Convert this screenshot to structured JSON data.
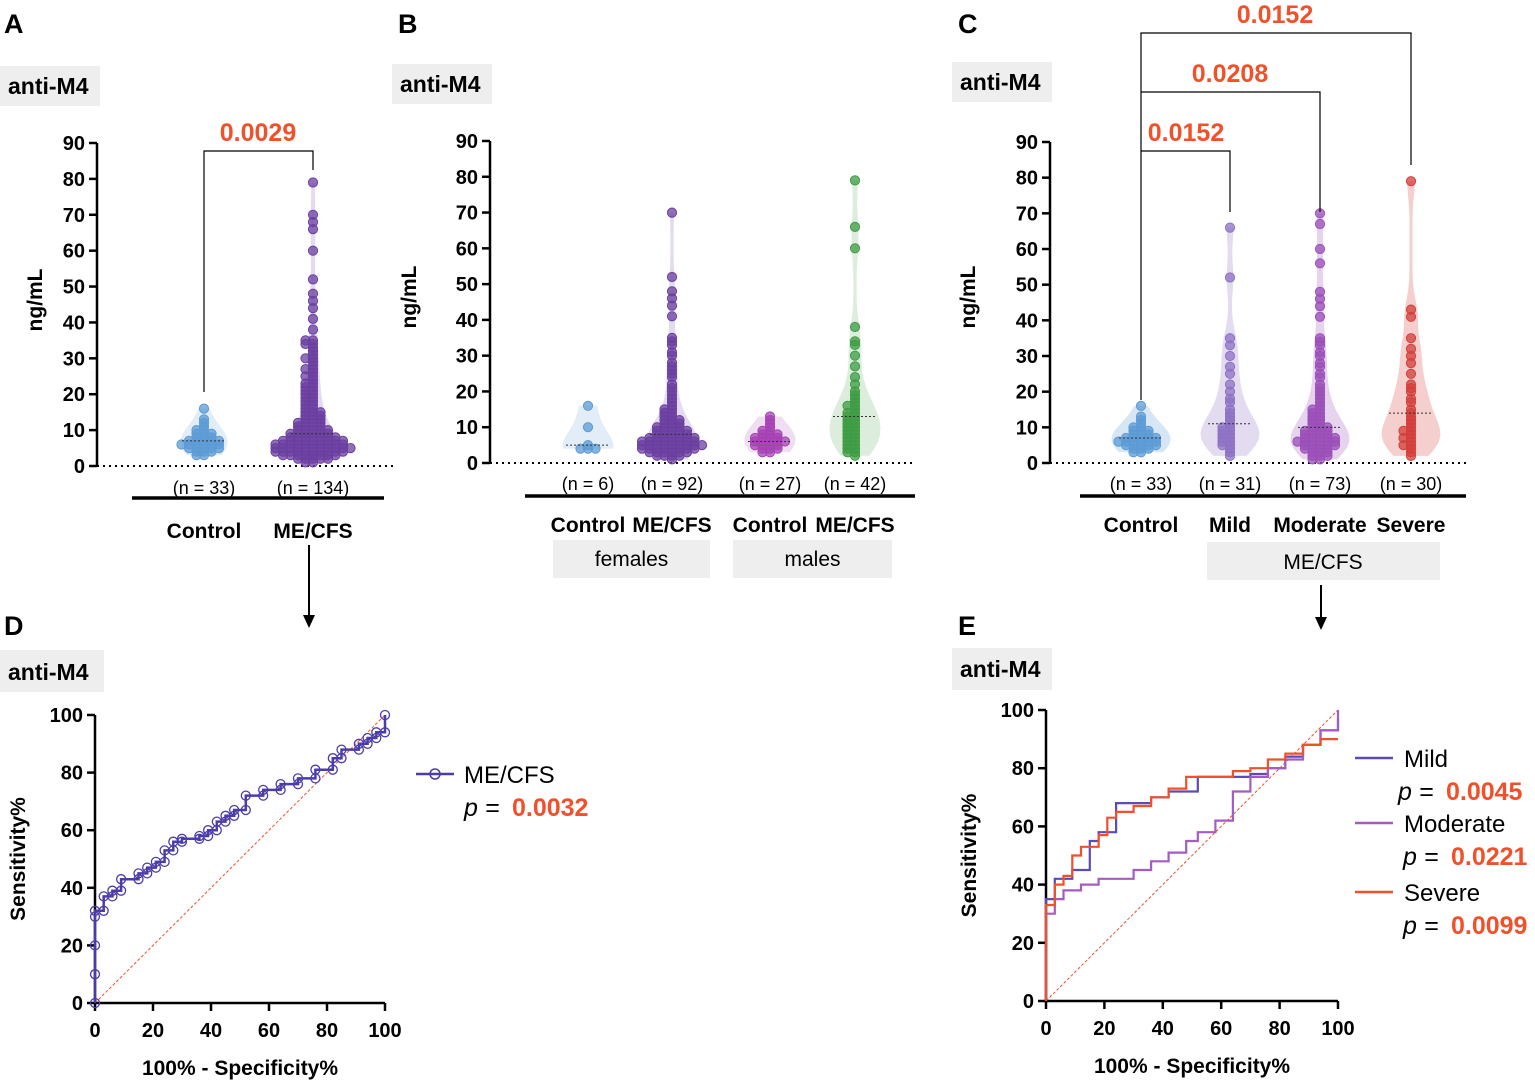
{
  "figure_labels": [
    "A",
    "B",
    "C",
    "D",
    "E"
  ],
  "colors": {
    "control_blue": "#5C9BD5",
    "mecfs_purple": "#6B3FA0",
    "male_control": "#A742B4",
    "male_mecfs": "#3E9C44",
    "mild": "#8E72C4",
    "moderate": "#9B4FB8",
    "severe": "#D33F3A",
    "significance": "#F0512A",
    "roc_main": "#4B3DA8"
  },
  "chart_data": [
    {
      "id": "A",
      "type": "scatter",
      "subtype": "violin-dot",
      "tag": "anti-M4",
      "ylabel": "ng/mL",
      "ylim": [
        0,
        90
      ],
      "yticks": [
        0,
        10,
        20,
        30,
        40,
        50,
        60,
        70,
        80,
        90
      ],
      "groups": [
        {
          "label": "Control",
          "n_label": "(n = 33)",
          "n": 33,
          "color": "#5C9BD5",
          "values": [
            16,
            13,
            12,
            11,
            10,
            10,
            9,
            9,
            9,
            8,
            8,
            8,
            7,
            7,
            7,
            7,
            7,
            6,
            6,
            6,
            6,
            6,
            6,
            5,
            5,
            5,
            5,
            5,
            4,
            4,
            4,
            3,
            3
          ]
        },
        {
          "label": "ME/CFS",
          "n_label": "(n = 134)",
          "n": 134,
          "color": "#6B3FA0",
          "values": [
            79,
            70,
            68,
            66,
            60,
            52,
            48,
            46,
            44,
            41,
            38,
            35,
            35,
            34,
            34,
            33,
            32,
            31,
            30,
            30,
            29,
            28,
            27,
            27,
            26,
            25,
            25,
            24,
            23,
            23,
            22,
            22,
            21,
            21,
            20,
            20,
            19,
            19,
            18,
            18,
            17,
            17,
            16,
            16,
            15,
            15,
            15,
            14,
            14,
            14,
            13,
            13,
            13,
            12,
            12,
            12,
            12,
            11,
            11,
            11,
            11,
            10,
            10,
            10,
            10,
            10,
            9,
            9,
            9,
            9,
            9,
            9,
            8,
            8,
            8,
            8,
            8,
            8,
            8,
            7,
            7,
            7,
            7,
            7,
            7,
            7,
            7,
            7,
            6,
            6,
            6,
            6,
            6,
            6,
            6,
            6,
            6,
            6,
            5,
            5,
            5,
            5,
            5,
            5,
            5,
            5,
            5,
            5,
            5,
            4,
            4,
            4,
            4,
            4,
            4,
            4,
            4,
            4,
            4,
            3,
            3,
            3,
            3,
            3,
            3,
            3,
            3,
            2,
            2,
            2,
            2,
            2,
            1,
            1
          ]
        }
      ],
      "comparisons": [
        {
          "from": "Control",
          "to": "ME/CFS",
          "p_label": "0.0029"
        }
      ]
    },
    {
      "id": "B",
      "type": "scatter",
      "subtype": "violin-dot",
      "tag": "anti-M4",
      "ylabel": "ng/mL",
      "ylim": [
        0,
        90
      ],
      "yticks": [
        0,
        10,
        20,
        30,
        40,
        50,
        60,
        70,
        80,
        90
      ],
      "groups": [
        {
          "label": "Control",
          "n_label": "(n = 6)",
          "n": 6,
          "color": "#5C9BD5",
          "values": [
            16,
            10,
            5,
            4,
            4,
            4
          ]
        },
        {
          "label": "ME/CFS",
          "n_label": "(n = 92)",
          "n": 92,
          "color": "#6B3FA0",
          "values": [
            70,
            52,
            48,
            46,
            44,
            41,
            35,
            34,
            33,
            31,
            30,
            28,
            27,
            26,
            25,
            24,
            22,
            21,
            20,
            19,
            18,
            17,
            16,
            15,
            15,
            14,
            14,
            13,
            13,
            12,
            12,
            12,
            11,
            11,
            11,
            10,
            10,
            10,
            10,
            9,
            9,
            9,
            9,
            9,
            8,
            8,
            8,
            8,
            8,
            7,
            7,
            7,
            7,
            7,
            7,
            7,
            6,
            6,
            6,
            6,
            6,
            6,
            6,
            6,
            5,
            5,
            5,
            5,
            5,
            5,
            5,
            5,
            5,
            4,
            4,
            4,
            4,
            4,
            4,
            4,
            4,
            3,
            3,
            3,
            3,
            3,
            3,
            2,
            2,
            2,
            2,
            1
          ]
        },
        {
          "label": "Control",
          "n_label": "(n = 27)",
          "n": 27,
          "color": "#A742B4",
          "values": [
            13,
            12,
            11,
            10,
            9,
            9,
            8,
            8,
            8,
            7,
            7,
            7,
            7,
            6,
            6,
            6,
            6,
            6,
            5,
            5,
            5,
            5,
            4,
            4,
            4,
            3,
            3
          ]
        },
        {
          "label": "ME/CFS",
          "n_label": "(n = 42)",
          "n": 42,
          "color": "#3E9C44",
          "values": [
            79,
            66,
            60,
            38,
            34,
            33,
            30,
            27,
            24,
            22,
            20,
            19,
            18,
            17,
            16,
            16,
            15,
            14,
            14,
            13,
            13,
            12,
            12,
            11,
            11,
            10,
            10,
            9,
            9,
            8,
            8,
            7,
            7,
            6,
            6,
            5,
            5,
            4,
            4,
            3,
            3,
            2
          ]
        }
      ],
      "sex_labels": [
        {
          "text": "females",
          "spans": [
            0,
            1
          ]
        },
        {
          "text": "males",
          "spans": [
            2,
            3
          ]
        }
      ]
    },
    {
      "id": "C",
      "type": "scatter",
      "subtype": "violin-dot",
      "tag": "anti-M4",
      "ylabel": "ng/mL",
      "ylim": [
        0,
        90
      ],
      "yticks": [
        0,
        10,
        20,
        30,
        40,
        50,
        60,
        70,
        80,
        90
      ],
      "groups": [
        {
          "label": "Control",
          "n_label": "(n = 33)",
          "n": 33,
          "color": "#5C9BD5",
          "values": [
            16,
            13,
            12,
            11,
            10,
            10,
            9,
            9,
            9,
            8,
            8,
            8,
            7,
            7,
            7,
            7,
            7,
            6,
            6,
            6,
            6,
            6,
            6,
            5,
            5,
            5,
            5,
            5,
            4,
            4,
            4,
            3,
            3
          ]
        },
        {
          "label": "Mild",
          "n_label": "(n = 31)",
          "n": 31,
          "color": "#8E72C4",
          "values": [
            66,
            52,
            35,
            33,
            30,
            27,
            25,
            22,
            20,
            18,
            17,
            15,
            14,
            13,
            12,
            11,
            10,
            10,
            9,
            9,
            8,
            8,
            7,
            7,
            6,
            6,
            5,
            5,
            4,
            3,
            2
          ]
        },
        {
          "label": "Moderate",
          "n_label": "(n = 73)",
          "n": 73,
          "color": "#9B4FB8",
          "values": [
            70,
            67,
            60,
            56,
            48,
            46,
            44,
            41,
            35,
            34,
            33,
            31,
            30,
            28,
            27,
            25,
            24,
            22,
            21,
            20,
            19,
            18,
            17,
            16,
            15,
            15,
            14,
            14,
            13,
            13,
            12,
            12,
            11,
            11,
            10,
            10,
            10,
            9,
            9,
            9,
            9,
            8,
            8,
            8,
            8,
            7,
            7,
            7,
            7,
            7,
            6,
            6,
            6,
            6,
            6,
            6,
            5,
            5,
            5,
            5,
            5,
            4,
            4,
            4,
            4,
            3,
            3,
            3,
            2,
            2,
            2,
            1,
            1
          ]
        },
        {
          "label": "Severe",
          "n_label": "(n = 30)",
          "n": 30,
          "color": "#D33F3A",
          "values": [
            79,
            43,
            41,
            35,
            32,
            30,
            28,
            25,
            22,
            21,
            20,
            18,
            17,
            15,
            14,
            13,
            12,
            11,
            10,
            9,
            9,
            8,
            7,
            7,
            6,
            5,
            5,
            4,
            3,
            2
          ]
        }
      ],
      "group_span_label": {
        "text": "ME/CFS",
        "spans": [
          1,
          3
        ]
      },
      "comparisons": [
        {
          "from": "Control",
          "to": "Mild",
          "p_label": "0.0152"
        },
        {
          "from": "Control",
          "to": "Moderate",
          "p_label": "0.0208"
        },
        {
          "from": "Control",
          "to": "Severe",
          "p_label": "0.0152"
        }
      ]
    },
    {
      "id": "D",
      "type": "line",
      "subtype": "roc",
      "tag": "anti-M4",
      "xlabel": "100% - Specificity%",
      "ylabel": "Sensitivity%",
      "xlim": [
        0,
        100
      ],
      "ylim": [
        0,
        100
      ],
      "ticks": [
        0,
        20,
        40,
        60,
        80,
        100
      ],
      "series": [
        {
          "name": "ME/CFS",
          "p_prefix": "p = ",
          "p_value": "0.0032",
          "color": "#4B3DA8",
          "markers": true,
          "x": [
            0,
            0,
            0,
            0,
            0,
            3,
            3,
            6,
            6,
            9,
            9,
            15,
            15,
            18,
            18,
            21,
            21,
            24,
            24,
            27,
            27,
            30,
            30,
            36,
            36,
            39,
            39,
            42,
            42,
            45,
            45,
            48,
            48,
            52,
            52,
            58,
            58,
            64,
            64,
            70,
            70,
            76,
            76,
            82,
            82,
            85,
            85,
            91,
            91,
            94,
            94,
            97,
            97,
            100,
            100
          ],
          "y": [
            0,
            10,
            20,
            30,
            32,
            32,
            37,
            37,
            39,
            39,
            43,
            43,
            45,
            45,
            47,
            47,
            49,
            49,
            53,
            53,
            56,
            56,
            57,
            57,
            58,
            58,
            60,
            60,
            63,
            63,
            65,
            65,
            67,
            67,
            72,
            72,
            74,
            74,
            76,
            76,
            78,
            78,
            81,
            81,
            85,
            85,
            88,
            88,
            90,
            90,
            92,
            92,
            94,
            94,
            100
          ]
        }
      ],
      "reference_line": {
        "x": [
          0,
          100
        ],
        "y": [
          0,
          100
        ],
        "color": "#F0512A"
      }
    },
    {
      "id": "E",
      "type": "line",
      "subtype": "roc",
      "tag": "anti-M4",
      "xlabel": "100% - Specificity%",
      "ylabel": "Sensitivity%",
      "xlim": [
        0,
        100
      ],
      "ylim": [
        0,
        100
      ],
      "ticks": [
        0,
        20,
        40,
        60,
        80,
        100
      ],
      "series": [
        {
          "name": "Mild",
          "p_prefix": "p = ",
          "p_value": "0.0045",
          "color": "#5A4BB5",
          "x": [
            0,
            0,
            3,
            3,
            9,
            9,
            15,
            15,
            18,
            18,
            24,
            24,
            36,
            36,
            42,
            42,
            52,
            52,
            70,
            70,
            76,
            76,
            82,
            82,
            88,
            88,
            94,
            94,
            100,
            100
          ],
          "y": [
            0,
            35,
            35,
            42,
            42,
            45,
            45,
            55,
            55,
            58,
            58,
            68,
            68,
            70,
            70,
            72,
            72,
            77,
            77,
            78,
            78,
            80,
            80,
            84,
            84,
            88,
            88,
            93,
            93,
            97
          ]
        },
        {
          "name": "Moderate",
          "p_prefix": "p = ",
          "p_value": "0.0221",
          "color": "#A45CC0",
          "x": [
            0,
            0,
            3,
            3,
            6,
            6,
            12,
            12,
            18,
            18,
            30,
            30,
            36,
            36,
            42,
            42,
            48,
            48,
            52,
            52,
            58,
            58,
            64,
            64,
            70,
            70,
            76,
            76,
            82,
            82,
            88,
            88,
            94,
            94,
            100,
            100
          ],
          "y": [
            0,
            30,
            30,
            35,
            35,
            38,
            38,
            40,
            40,
            42,
            42,
            45,
            45,
            48,
            48,
            51,
            51,
            55,
            55,
            58,
            58,
            62,
            62,
            72,
            72,
            77,
            77,
            80,
            80,
            83,
            83,
            88,
            88,
            93,
            93,
            100
          ]
        },
        {
          "name": "Severe",
          "p_prefix": "p = ",
          "p_value": "0.0099",
          "color": "#F0512A",
          "x": [
            0,
            0,
            3,
            3,
            6,
            6,
            9,
            9,
            12,
            12,
            18,
            18,
            21,
            21,
            24,
            24,
            30,
            30,
            36,
            36,
            42,
            42,
            48,
            48,
            58,
            58,
            64,
            64,
            70,
            70,
            76,
            76,
            82,
            82,
            88,
            88,
            94,
            94,
            100,
            100
          ],
          "y": [
            0,
            33,
            33,
            40,
            40,
            43,
            43,
            50,
            50,
            53,
            53,
            57,
            57,
            63,
            63,
            65,
            65,
            67,
            67,
            70,
            70,
            73,
            73,
            77,
            77,
            77,
            77,
            79,
            79,
            80,
            80,
            83,
            83,
            85,
            85,
            88,
            88,
            90,
            90,
            90
          ]
        }
      ],
      "reference_line": {
        "x": [
          0,
          100
        ],
        "y": [
          0,
          100
        ],
        "color": "#F0512A"
      }
    }
  ]
}
